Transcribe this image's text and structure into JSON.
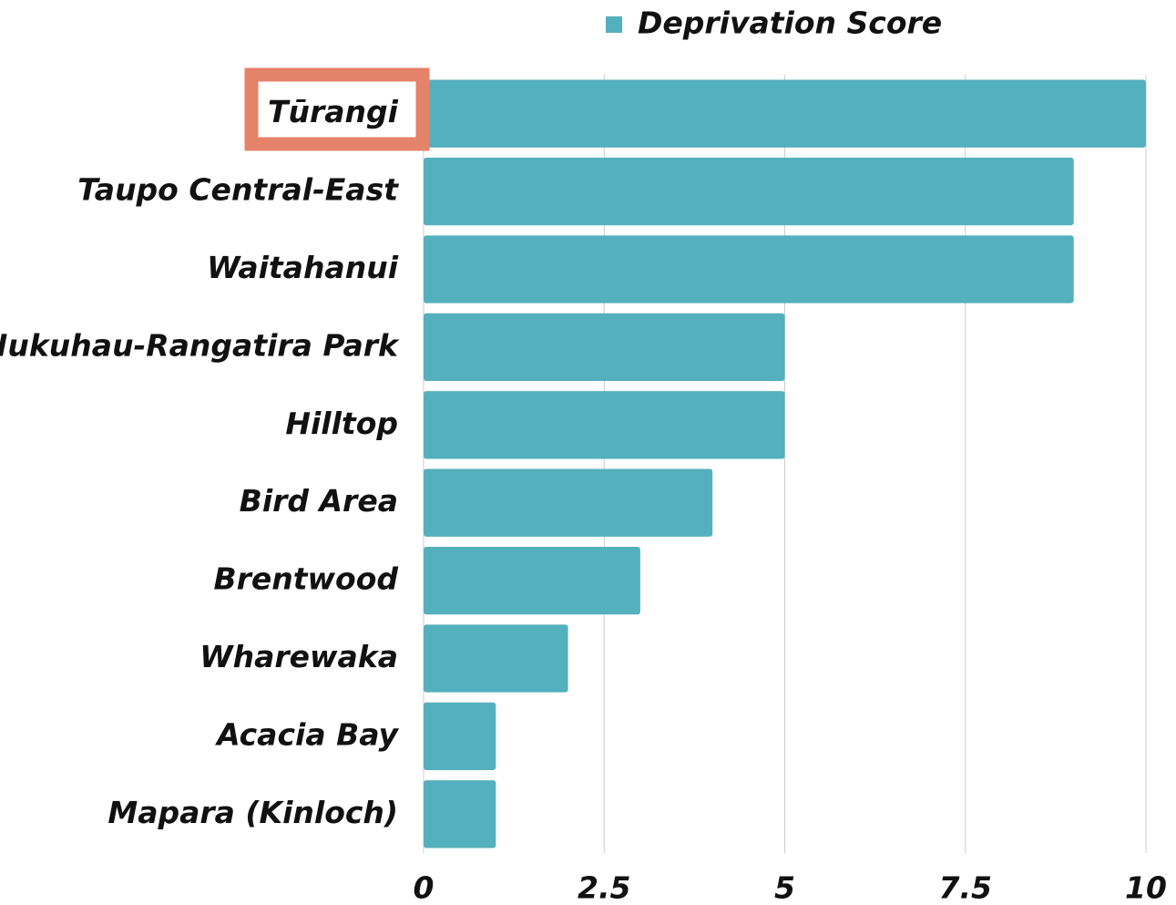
{
  "chart_data": {
    "type": "bar",
    "orientation": "horizontal",
    "categories": [
      "Tūrangi",
      "Taupo Central-East",
      "Waitahanui",
      "Nukuhau-Rangatira Park",
      "Hilltop",
      "Bird Area",
      "Brentwood",
      "Wharewaka",
      "Acacia Bay",
      "Mapara (Kinloch)"
    ],
    "series": [
      {
        "name": "Deprivation Score",
        "color": "#55b0bd",
        "values": [
          10,
          9,
          9,
          5,
          5,
          4,
          3,
          2,
          1,
          1
        ]
      }
    ],
    "xlim": [
      0,
      10
    ],
    "xticks": [
      0,
      2.5,
      5,
      7.5,
      10
    ],
    "grid": true,
    "legend": "top"
  }
}
